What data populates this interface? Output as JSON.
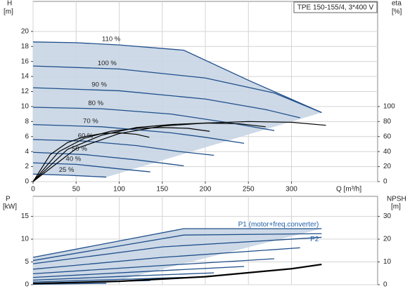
{
  "chart_data": [
    {
      "type": "line",
      "title": "TPE 150-155/4, 3*400 V",
      "y_label": "H",
      "y_unit": "[m]",
      "y2_label": "eta",
      "y2_unit": "[%]",
      "x_label": "Q [m³/h]",
      "xlim": [
        0,
        400
      ],
      "xticks": [
        0,
        50,
        100,
        150,
        200,
        250,
        300
      ],
      "ylim": [
        0,
        24
      ],
      "yticks": [
        0,
        2,
        4,
        6,
        8,
        10,
        12,
        14,
        16,
        18,
        20
      ],
      "y2lim": [
        0,
        240
      ],
      "y2ticks": [
        0,
        20,
        40,
        60,
        80,
        100
      ],
      "grid": true,
      "region_color": "#c8d5e4",
      "series": [
        {
          "name": "110 %",
          "color": "#1f4f8a",
          "x": [
            0,
            50,
            100,
            175,
            250,
            335
          ],
          "values": [
            18.6,
            18.5,
            18.2,
            17.5,
            13.5,
            9.2
          ]
        },
        {
          "name": "100 %",
          "color": "#1f4f8a",
          "x": [
            0,
            100,
            200,
            280,
            335
          ],
          "values": [
            15.4,
            15.0,
            13.8,
            11.8,
            9.2
          ]
        },
        {
          "name": "90 %",
          "color": "#1f4f8a",
          "x": [
            0,
            100,
            200,
            270,
            310
          ],
          "values": [
            12.5,
            12.1,
            11.0,
            9.6,
            8.5
          ]
        },
        {
          "name": "80 %",
          "color": "#1f4f8a",
          "x": [
            0,
            80,
            160,
            230,
            280
          ],
          "values": [
            9.9,
            9.7,
            9.0,
            7.8,
            6.8
          ]
        },
        {
          "name": "70 %",
          "color": "#1f4f8a",
          "x": [
            0,
            80,
            160,
            200,
            245
          ],
          "values": [
            7.6,
            7.3,
            6.5,
            5.9,
            5.1
          ]
        },
        {
          "name": "60 %",
          "color": "#1f4f8a",
          "x": [
            0,
            60,
            120,
            170,
            210
          ],
          "values": [
            5.6,
            5.4,
            4.8,
            4.0,
            3.5
          ]
        },
        {
          "name": "50 %",
          "color": "#1f4f8a",
          "x": [
            0,
            60,
            120,
            175
          ],
          "values": [
            3.9,
            3.6,
            2.9,
            2.1
          ]
        },
        {
          "name": "40 %",
          "color": "#1f4f8a",
          "x": [
            0,
            50,
            100,
            136
          ],
          "values": [
            2.5,
            2.3,
            1.7,
            1.3
          ]
        },
        {
          "name": "25 %",
          "color": "#1f4f8a",
          "x": [
            0,
            40,
            85
          ],
          "values": [
            1.0,
            0.85,
            0.6
          ]
        },
        {
          "axis": "y2",
          "color": "#000000",
          "x": [
            0,
            50,
            100,
            150,
            200,
            250,
            300,
            340
          ],
          "values": [
            0,
            44,
            64,
            74,
            78,
            80,
            79,
            75
          ]
        },
        {
          "axis": "y2",
          "color": "#000000",
          "x": [
            0,
            40,
            80,
            120,
            160,
            200,
            240,
            270
          ],
          "values": [
            0,
            43,
            62,
            72,
            76,
            78,
            77,
            73
          ]
        },
        {
          "axis": "y2",
          "color": "#000000",
          "x": [
            0,
            30,
            60,
            90,
            120,
            150,
            180,
            205
          ],
          "values": [
            0,
            40,
            58,
            67,
            71,
            72,
            71,
            67
          ]
        },
        {
          "axis": "y2",
          "color": "#000000",
          "x": [
            0,
            20,
            40,
            60,
            80,
            100,
            120,
            135
          ],
          "values": [
            0,
            36,
            52,
            60,
            64,
            65,
            63,
            59
          ]
        }
      ]
    },
    {
      "type": "line",
      "y_label": "P",
      "y_unit": "[kW]",
      "y2_label": "NPSH",
      "y2_unit": "[m]",
      "xlim": [
        0,
        400
      ],
      "ylim": [
        0,
        19.4
      ],
      "yticks": [
        0,
        5,
        10,
        15
      ],
      "y2lim": [
        0,
        38.8
      ],
      "y2ticks": [
        0,
        10,
        20,
        30
      ],
      "grid": true,
      "region_color": "#c8d5e4",
      "series": [
        {
          "name": "P1 (motor+freq.converter)",
          "color": "#1f4f8a",
          "x": [
            0,
            175,
            335
          ],
          "values": [
            6.0,
            12.3,
            12.3
          ]
        },
        {
          "color": "#1f4f8a",
          "x": [
            0,
            150,
            335
          ],
          "values": [
            4.6,
            8.3,
            10.4
          ]
        },
        {
          "color": "#1f4f8a",
          "x": [
            0,
            150,
            310
          ],
          "values": [
            3.4,
            6.0,
            8.1
          ]
        },
        {
          "color": "#1f4f8a",
          "x": [
            0,
            140,
            280
          ],
          "values": [
            2.4,
            4.1,
            5.7
          ]
        },
        {
          "color": "#1f4f8a",
          "x": [
            0,
            120,
            245
          ],
          "values": [
            1.6,
            2.8,
            4.0
          ]
        },
        {
          "color": "#1f4f8a",
          "x": [
            0,
            100,
            210
          ],
          "values": [
            1.0,
            1.8,
            2.6
          ]
        },
        {
          "color": "#1f4f8a",
          "x": [
            0,
            90,
            175
          ],
          "values": [
            0.6,
            1.1,
            1.6
          ]
        },
        {
          "color": "#1f4f8a",
          "x": [
            0,
            70,
            136
          ],
          "values": [
            0.35,
            0.6,
            0.9
          ]
        },
        {
          "color": "#1f4f8a",
          "x": [
            0,
            85
          ],
          "values": [
            0.1,
            0.3
          ]
        },
        {
          "name": "P2",
          "color": "#1f4f8a",
          "x": [
            0,
            175,
            335
          ],
          "values": [
            5.3,
            10.9,
            11.2
          ]
        },
        {
          "axis": "y2",
          "color": "#000000",
          "x": [
            0,
            100,
            200,
            300,
            335
          ],
          "values": [
            0.5,
            1.5,
            3.5,
            7.0,
            8.9
          ]
        }
      ]
    }
  ]
}
